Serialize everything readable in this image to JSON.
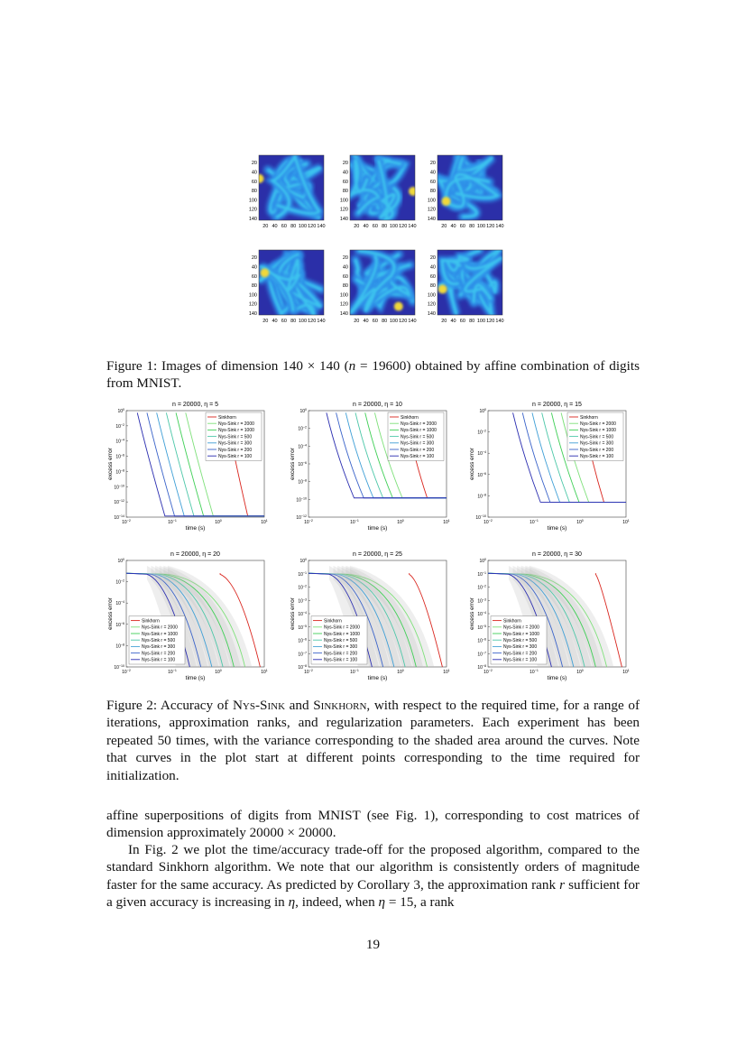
{
  "figure1": {
    "xticks": [
      "20",
      "40",
      "60",
      "80",
      "100",
      "120",
      "140"
    ],
    "yticks": [
      "20",
      "40",
      "60",
      "80",
      "100",
      "120",
      "140"
    ],
    "caption_label": "Figure 1:",
    "caption": [
      "Images of dimension 140 × 140 (",
      "n",
      " = 19600) obtained by affine combination of digits from MNIST."
    ]
  },
  "figure2": {
    "x_label": "time (s)",
    "y_label": "excess error",
    "tick_base": "10",
    "series": [
      {
        "name": "Sinkhorn",
        "color": "#d9241c"
      },
      {
        "name": "Nys-Sink r = 2000",
        "color": "#7ee07a"
      },
      {
        "name": "Nys-Sink r = 1000",
        "color": "#3fcf56"
      },
      {
        "name": "Nys-Sink r = 500",
        "color": "#4cc7a8"
      },
      {
        "name": "Nys-Sink r = 300",
        "color": "#3f9fd6"
      },
      {
        "name": "Nys-Sink r = 200",
        "color": "#3a63c9"
      },
      {
        "name": "Nys-Sink r = 100",
        "color": "#2a2db0"
      }
    ],
    "panels": [
      {
        "title": "n = 20000, η = 5",
        "xtick_exps": [
          "−2",
          "−1",
          "0",
          "1"
        ],
        "ytick_exps": [
          "0",
          "−2",
          "−4",
          "−6",
          "−8",
          "−10",
          "−12",
          "−14"
        ]
      },
      {
        "title": "n = 20000, η = 10",
        "xtick_exps": [
          "−2",
          "−1",
          "0",
          "1"
        ],
        "ytick_exps": [
          "0",
          "−2",
          "−4",
          "−6",
          "−8",
          "−10",
          "−12"
        ]
      },
      {
        "title": "n = 20000, η = 15",
        "xtick_exps": [
          "−2",
          "−1",
          "0",
          "1"
        ],
        "ytick_exps": [
          "0",
          "−2",
          "−4",
          "−6",
          "−8",
          "−10"
        ]
      },
      {
        "title": "n = 20000, η = 20",
        "xtick_exps": [
          "−2",
          "−1",
          "0",
          "1"
        ],
        "ytick_exps": [
          "0",
          "−2",
          "−4",
          "−6",
          "−8",
          "−10"
        ]
      },
      {
        "title": "n = 20000, η = 25",
        "xtick_exps": [
          "−2",
          "−1",
          "0",
          "1"
        ],
        "ytick_exps": [
          "0",
          "−1",
          "−2",
          "−3",
          "−4",
          "−5",
          "−6",
          "−7",
          "−8"
        ]
      },
      {
        "title": "n = 20000, η = 30",
        "xtick_exps": [
          "−2",
          "−1",
          "0",
          "1"
        ],
        "ytick_exps": [
          "0",
          "−1",
          "−2",
          "−3",
          "−4",
          "−5",
          "−6",
          "−7",
          "−8"
        ]
      }
    ],
    "caption_label": "Figure 2:",
    "caption": [
      "Accuracy of ",
      "Nys-Sink",
      " and ",
      "Sinkhorn",
      ", with respect to the required time, for a range of iterations, approximation ranks, and regularization parameters. Each experiment has been repeated 50 times, with the variance corresponding to the shaded area around the curves. Note that curves in the plot start at different points corresponding to the time required for initialization."
    ]
  },
  "body": {
    "paragraph1": [
      "affine superpositions of digits from MNIST (see Fig. 1), corresponding to cost matrices of dimension approximately 20000 × 20000."
    ],
    "paragraph2": [
      "In Fig. 2 we plot the time/accuracy trade-off for the proposed algorithm, compared to the standard Sinkhorn algorithm. We note that our algorithm is consistently orders of magnitude faster for the same accuracy. As predicted by Corollary 3, the approximation rank ",
      "r",
      " sufficient for a given accuracy is increasing in ",
      "η",
      ", indeed, when ",
      "η",
      " = 15, a rank"
    ]
  },
  "page_number": "19"
}
